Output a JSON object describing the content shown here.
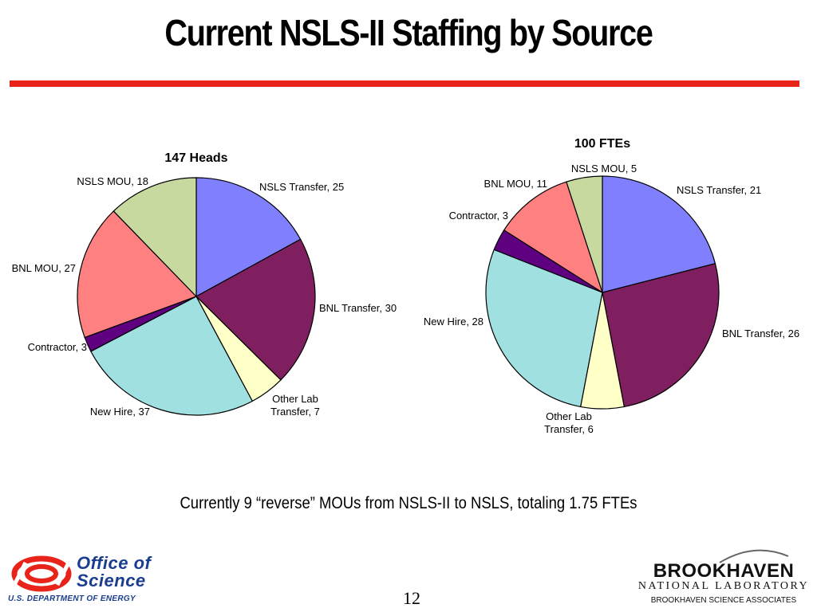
{
  "slide": {
    "title": "Current NSLS-II Staffing by Source",
    "footnote": "Currently 9 “reverse” MOUs from NSLS-II to NSLS, totaling 1.75 FTEs",
    "page_number": "12",
    "accent_color": "#e8241a"
  },
  "logos": {
    "doe_line1": "Office of",
    "doe_line2": "Science",
    "doe_line3": "U.S. DEPARTMENT OF ENERGY",
    "bnl_line1": "BROOKHAVEN",
    "bnl_line2": "NATIONAL LABORATORY",
    "bnl_line3": "BROOKHAVEN SCIENCE ASSOCIATES"
  },
  "chart_data": [
    {
      "type": "pie",
      "title": "147 Heads",
      "slices": [
        {
          "label": "NSLS Transfer, 25",
          "value": 25,
          "color": "#8080ff"
        },
        {
          "label": "BNL Transfer, 30",
          "value": 30,
          "color": "#7f1f5f"
        },
        {
          "label": "Other Lab Transfer, 7",
          "value": 7,
          "color": "#ffffc8"
        },
        {
          "label": "New Hire, 37",
          "value": 37,
          "color": "#a0e0e0"
        },
        {
          "label": "Contractor, 3",
          "value": 3,
          "color": "#5f0080"
        },
        {
          "label": "BNL MOU, 27",
          "value": 27,
          "color": "#ff8080"
        },
        {
          "label": "NSLS MOU, 18",
          "value": 18,
          "color": "#c8d9a0"
        }
      ]
    },
    {
      "type": "pie",
      "title": "100 FTEs",
      "slices": [
        {
          "label": "NSLS Transfer, 21",
          "value": 21,
          "color": "#8080ff"
        },
        {
          "label": "BNL Transfer, 26",
          "value": 26,
          "color": "#7f1f5f"
        },
        {
          "label": "Other Lab Transfer, 6",
          "value": 6,
          "color": "#ffffc8"
        },
        {
          "label": "New Hire, 28",
          "value": 28,
          "color": "#a0e0e0"
        },
        {
          "label": "Contractor, 3",
          "value": 3,
          "color": "#5f0080"
        },
        {
          "label": "BNL MOU, 11",
          "value": 11,
          "color": "#ff8080"
        },
        {
          "label": "NSLS MOU, 5",
          "value": 5,
          "color": "#c8d9a0"
        }
      ]
    }
  ]
}
